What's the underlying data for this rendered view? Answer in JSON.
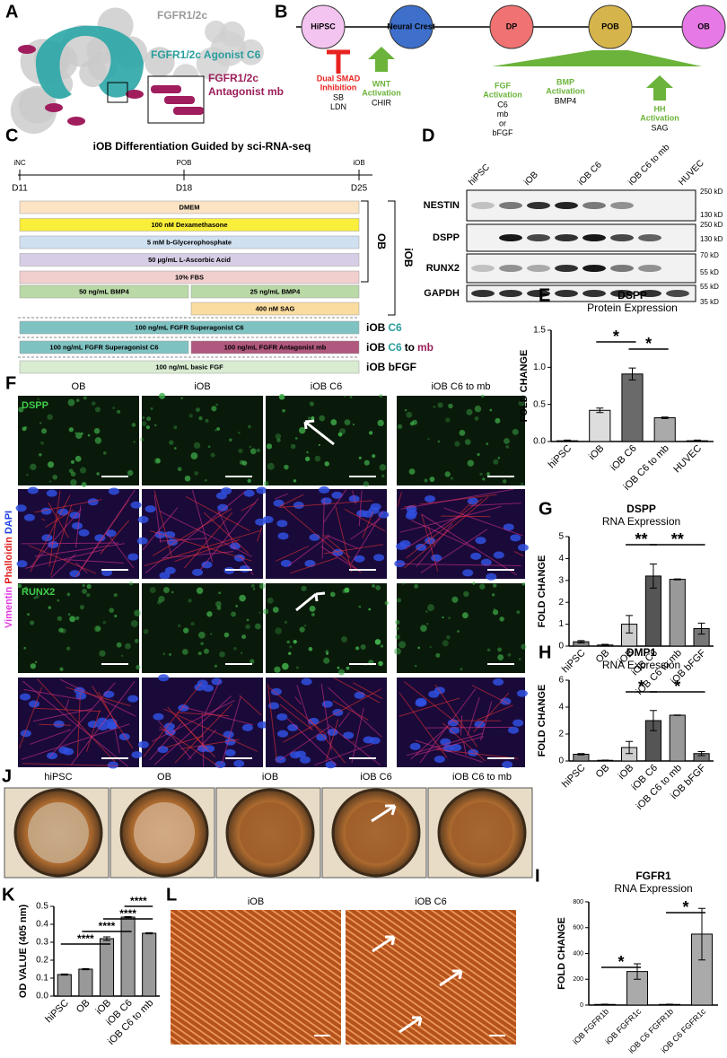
{
  "fig_a": {
    "label": "A",
    "receptor": "FGFR1/2c",
    "agonist": "FGFR1/2c Agonist C6",
    "antagonist": [
      "FGFR1/2c",
      "Antagonist mb"
    ]
  },
  "fig_b": {
    "label": "B",
    "nodes": [
      {
        "name": "HiPSC",
        "color": "#f4c4f0"
      },
      {
        "name": "Neural Crest",
        "color": "#3d6fcb"
      },
      {
        "name": "DP",
        "color": "#f07272"
      },
      {
        "name": "POB",
        "color": "#d6b44c"
      },
      {
        "name": "OB",
        "color": "#e679e6"
      }
    ],
    "annotations": [
      {
        "lines": [
          "Dual SMAD",
          "Inhibition"
        ],
        "agents": [
          "SB",
          "LDN"
        ],
        "color": "#e8231f"
      },
      {
        "lines": [
          "WNT",
          "Activation"
        ],
        "agents": [
          "CHIR"
        ],
        "color": "#6bb33a"
      },
      {
        "lines": [
          "FGF",
          "Activation"
        ],
        "agents": [
          "C6",
          "mb",
          "or",
          "bFGF"
        ],
        "color": "#6bb33a"
      },
      {
        "lines": [
          "BMP",
          "Activation"
        ],
        "agents": [
          "BMP4"
        ],
        "color": "#6bb33a"
      },
      {
        "lines": [
          "HH",
          "Activation"
        ],
        "agents": [
          "SAG"
        ],
        "color": "#6bb33a"
      }
    ]
  },
  "fig_c": {
    "label": "C",
    "title": "iOB Differentiation Guided by sci-RNA-seq",
    "timeline": [
      {
        "stage": "iNC",
        "day": "D11"
      },
      {
        "stage": "POB",
        "day": "D18"
      },
      {
        "stage": "iOB",
        "day": "D25"
      }
    ],
    "media": [
      {
        "text": "DMEM",
        "color": "#fbe3c4"
      },
      {
        "text": "100 nM Dexamethasone",
        "color": "#f9ee3a"
      },
      {
        "text": "5 mM b-Glycerophosphate",
        "color": "#cfe0f1"
      },
      {
        "text": "50 µg/mL L-Ascorbic Acid",
        "color": "#d8cde6"
      },
      {
        "text": "10% FBS",
        "color": "#f2cfcf"
      }
    ],
    "bmp4": [
      {
        "text": "50 ng/mL BMP4",
        "color": "#b9d9a6"
      },
      {
        "text": "25 ng/mL BMP4",
        "color": "#b9d9a6"
      }
    ],
    "sag": {
      "text": "400 nM SAG",
      "color": "#fbdca0"
    },
    "brackets": [
      "OB",
      "iOB"
    ],
    "conditions": [
      {
        "bars": [
          {
            "text": "100 ng/mL FGFR Superagonist C6",
            "color": "#7fc2c2"
          }
        ],
        "parts": [
          {
            "text": "iOB",
            "color": "#000000"
          },
          {
            "text": "C6",
            "color": "#2a9d9d"
          }
        ]
      },
      {
        "bars": [
          {
            "text": "100 ng/mL FGFR Superagonist C6",
            "color": "#7fc2c2"
          },
          {
            "text": "100 ng/mL FGFR Antagonist mb",
            "color": "#b0587e"
          }
        ],
        "parts": [
          {
            "text": "iOB",
            "color": "#000000"
          },
          {
            "text": "C6",
            "color": "#2a9d9d"
          },
          {
            "text": "to",
            "color": "#000000"
          },
          {
            "text": "mb",
            "color": "#9b1f5a"
          }
        ]
      },
      {
        "bars": [
          {
            "text": "100 ng/mL basic FGF",
            "color": "#d9ecd2"
          }
        ],
        "parts": [
          {
            "text": "iOB bFGF",
            "color": "#000000"
          }
        ]
      }
    ]
  },
  "fig_d": {
    "label": "D",
    "lanes": [
      "hiPSC",
      "iOB",
      "iOB C6",
      "iOB C6 to mb",
      "HUVEC"
    ],
    "rows": [
      "NESTIN",
      "DSPP",
      "RUNX2",
      "GAPDH"
    ],
    "markers": [
      "250 kD",
      "130 kD",
      "250 kD",
      "130 kD",
      "70 kD",
      "55 kD",
      "55 kD",
      "35 kD"
    ]
  },
  "fig_f": {
    "label": "F",
    "columns": [
      "OB",
      "iOB",
      "iOB C6",
      "iOB C6 to mb"
    ],
    "stains": [
      "DSPP",
      "RUNX2"
    ],
    "side": [
      {
        "text": "Vimentin",
        "color": "#e03ce0"
      },
      {
        "text": "Phalloidin",
        "color": "#e02020"
      },
      {
        "text": "DAPI",
        "color": "#2040e0"
      }
    ]
  },
  "fig_j": {
    "label": "J",
    "columns": [
      "hiPSC",
      "OB",
      "iOB",
      "iOB C6",
      "iOB C6 to mb"
    ]
  },
  "fig_l": {
    "label": "L",
    "columns": [
      "iOB",
      "iOB C6"
    ]
  },
  "chart_data": [
    {
      "type": "bar",
      "panel": "E",
      "title": "DSPP",
      "subtitle": "Protein Expression",
      "y_label": "FOLD CHANGE",
      "categories": [
        "hiPSC",
        "iOB",
        "iOB C6",
        "iOB C6 to mb",
        "HUVEC"
      ],
      "values": [
        0.01,
        0.42,
        0.91,
        0.32,
        0.01
      ],
      "errors": [
        0.01,
        0.03,
        0.08,
        0.01,
        0.01
      ],
      "colors": [
        "#eeeeee",
        "#dddddd",
        "#6a6a6a",
        "#aaaaaa",
        "#eeeeee"
      ],
      "ylim": [
        0,
        1.5
      ],
      "yticks": [
        {
          "value": 0,
          "label": "0.0"
        },
        {
          "value": 0.5,
          "label": "0.5"
        },
        {
          "value": 1,
          "label": "1.0"
        },
        {
          "value": 1.5,
          "label": "1.5"
        }
      ],
      "significance": [
        "*",
        "*"
      ]
    },
    {
      "type": "bar",
      "panel": "G",
      "title": "DSPP",
      "subtitle": "RNA Expression",
      "y_label": "FOLD CHANGE",
      "categories": [
        "hiPSC",
        "OB",
        "iOB",
        "iOB C6",
        "iOB C6 to mb",
        "iOB bFGF"
      ],
      "values": [
        0.2,
        0.05,
        1.0,
        3.2,
        3.05,
        0.8
      ],
      "errors": [
        0.05,
        0.03,
        0.4,
        0.55,
        0.02,
        0.25
      ],
      "colors": [
        "#888888",
        "#888888",
        "#cccccc",
        "#555555",
        "#999999",
        "#777777"
      ],
      "ylim": [
        0,
        5
      ],
      "yticks": [
        0,
        1,
        2,
        3,
        4,
        5
      ],
      "significance": [
        "**",
        "**"
      ]
    },
    {
      "type": "bar",
      "panel": "H",
      "title": "DMP1",
      "subtitle": "RNA Expression",
      "y_label": "FOLD CHANGE",
      "categories": [
        "hiPSC",
        "OB",
        "iOB",
        "iOB C6",
        "iOB C6 to mb",
        "iOB bFGF"
      ],
      "values": [
        0.5,
        0.05,
        1.0,
        3.0,
        3.4,
        0.55
      ],
      "errors": [
        0.05,
        0.02,
        0.45,
        0.75,
        0.02,
        0.15
      ],
      "colors": [
        "#888888",
        "#888888",
        "#cccccc",
        "#555555",
        "#999999",
        "#777777"
      ],
      "ylim": [
        0,
        6
      ],
      "yticks": [
        0,
        2,
        4,
        6
      ],
      "significance": [
        "*",
        "*"
      ]
    },
    {
      "type": "bar",
      "panel": "I",
      "title": "FGFR1",
      "subtitle": "RNA Expression",
      "y_label": "FOLD CHANGE",
      "categories": [
        "iOB FGFR1b",
        "iOB FGFR1c",
        "iOB C6 FGFR1b",
        "iOB C6 FGFR1c"
      ],
      "values": [
        5,
        260,
        5,
        550
      ],
      "errors": [
        2,
        60,
        2,
        200
      ],
      "colors": [
        "#dddddd",
        "#aaaaaa",
        "#dddddd",
        "#aaaaaa"
      ],
      "ylim": [
        0,
        800
      ],
      "yticks": [
        0,
        200,
        400,
        600,
        800
      ],
      "significance": [
        "*",
        "*"
      ]
    },
    {
      "type": "bar",
      "panel": "K",
      "y_label": "OD VALUE (405 nm)",
      "categories": [
        "hiPSC",
        "OB",
        "iOB",
        "iOB C6",
        "iOB C6 to mb"
      ],
      "values": [
        0.12,
        0.15,
        0.32,
        0.44,
        0.35
      ],
      "errors": [
        0.003,
        0.003,
        0.01,
        0.003,
        0.003
      ],
      "colors": [
        "#999999",
        "#999999",
        "#999999",
        "#999999",
        "#999999"
      ],
      "ylim": [
        0,
        0.5
      ],
      "yticks": [
        {
          "value": 0,
          "label": "0.0"
        },
        {
          "value": 0.1,
          "label": "0.1"
        },
        {
          "value": 0.2,
          "label": "0.2"
        },
        {
          "value": 0.3,
          "label": "0.3"
        },
        {
          "value": 0.4,
          "label": "0.4"
        },
        {
          "value": 0.5,
          "label": "0.5"
        }
      ],
      "significance": [
        "****",
        "****",
        "****",
        "****"
      ]
    }
  ]
}
